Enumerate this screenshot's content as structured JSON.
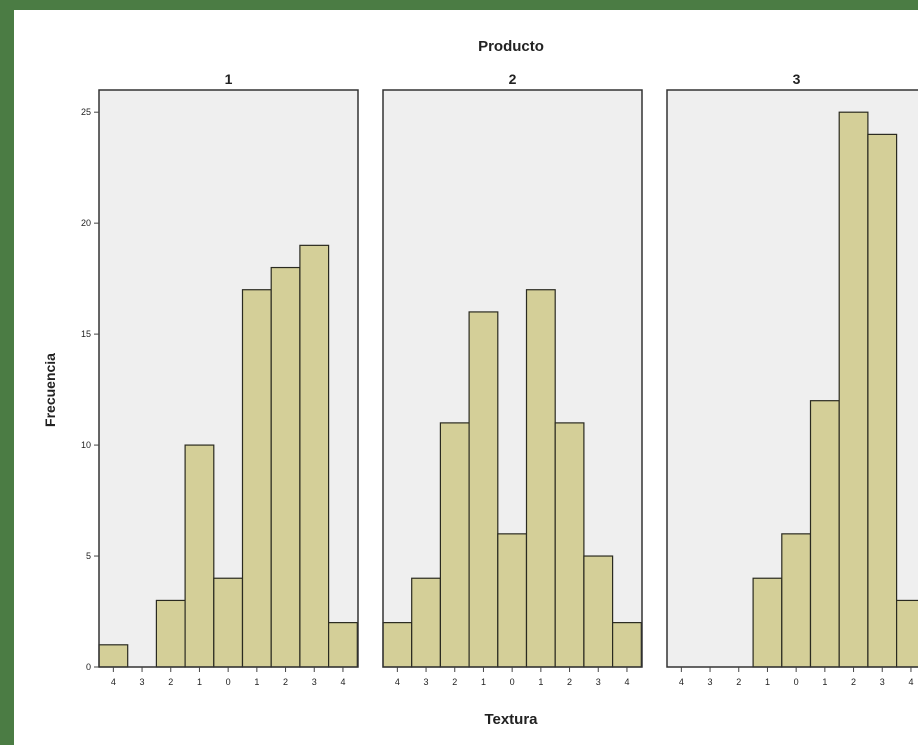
{
  "chart_data": {
    "type": "bar",
    "title": "Producto",
    "xlabel": "Textura",
    "ylabel": "Frecuencia",
    "ylim": [
      0,
      26
    ],
    "y_ticks": [
      0,
      5,
      10,
      15,
      20,
      25
    ],
    "y_tick_labels": [
      "0",
      "5",
      "10",
      "15",
      "20",
      "25"
    ],
    "grid": false,
    "panels": [
      {
        "label": "1",
        "categories": [
          "4",
          "3",
          "2",
          "1",
          "0",
          "1",
          "2",
          "3",
          "4"
        ],
        "values": [
          1,
          0,
          3,
          10,
          4,
          17,
          18,
          19,
          2
        ]
      },
      {
        "label": "2",
        "categories": [
          "4",
          "3",
          "2",
          "1",
          "0",
          "1",
          "2",
          "3",
          "4"
        ],
        "values": [
          2,
          4,
          11,
          16,
          6,
          17,
          11,
          5,
          2
        ]
      },
      {
        "label": "3",
        "categories": [
          "4",
          "3",
          "2",
          "1",
          "0",
          "1",
          "2",
          "3",
          "4"
        ],
        "values": [
          0,
          0,
          0,
          4,
          6,
          12,
          25,
          24,
          3
        ]
      }
    ],
    "bar_color": "#d4cf98",
    "panel_background": "#efefef"
  }
}
